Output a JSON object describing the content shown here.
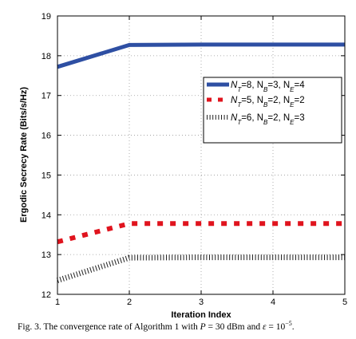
{
  "chart_data": {
    "type": "line",
    "title": "",
    "xlabel": "Iteration Index",
    "ylabel": "Ergodic Secrecy Rate (Bits/s/Hz)",
    "xlim": [
      1,
      5
    ],
    "ylim": [
      12,
      19
    ],
    "x_ticks": [
      "1",
      "2",
      "3",
      "4",
      "5"
    ],
    "y_ticks": [
      "12",
      "13",
      "14",
      "15",
      "16",
      "17",
      "18",
      "19"
    ],
    "grid": true,
    "legend_position": "upper-right",
    "series": [
      {
        "name": "N_T=8, N_B=3, N_E=4",
        "color": "#2e4fa3",
        "style": "solid",
        "x": [
          1,
          2,
          3,
          4,
          5
        ],
        "y": [
          17.72,
          18.27,
          18.28,
          18.28,
          18.28
        ]
      },
      {
        "name": "N_T=5, N_B=2, N_E=2",
        "color": "#e0141e",
        "style": "dashed",
        "x": [
          1,
          2,
          3,
          4,
          5
        ],
        "y": [
          13.32,
          13.78,
          13.78,
          13.78,
          13.78
        ]
      },
      {
        "name": "N_T=6, N_B=2, N_E=3",
        "color": "#222222",
        "style": "dotted",
        "x": [
          1,
          2,
          3,
          4,
          5
        ],
        "y": [
          12.35,
          12.92,
          12.93,
          12.93,
          12.93
        ]
      }
    ]
  },
  "legend_labels": [
    {
      "n1": "T",
      "v1": "=8, N",
      "n2": "B",
      "v2": "=3, N",
      "n3": "E",
      "v3": "=4"
    },
    {
      "n1": "T",
      "v1": "=5, N",
      "n2": "B",
      "v2": "=2, N",
      "n3": "E",
      "v3": "=2"
    },
    {
      "n1": "T",
      "v1": "=6, N",
      "n2": "B",
      "v2": "=2, N",
      "n3": "E",
      "v3": "=3"
    }
  ],
  "legend_var": "N",
  "caption": {
    "prefix": "Fig. 3.   The convergence rate of Algorithm 1 with ",
    "p_var": "P",
    "p_val": " = 30",
    "p_unit": " dBm and ",
    "eps_var": "ε",
    "eps_val": " = 10",
    "eps_exp": "−5",
    "end": "."
  }
}
